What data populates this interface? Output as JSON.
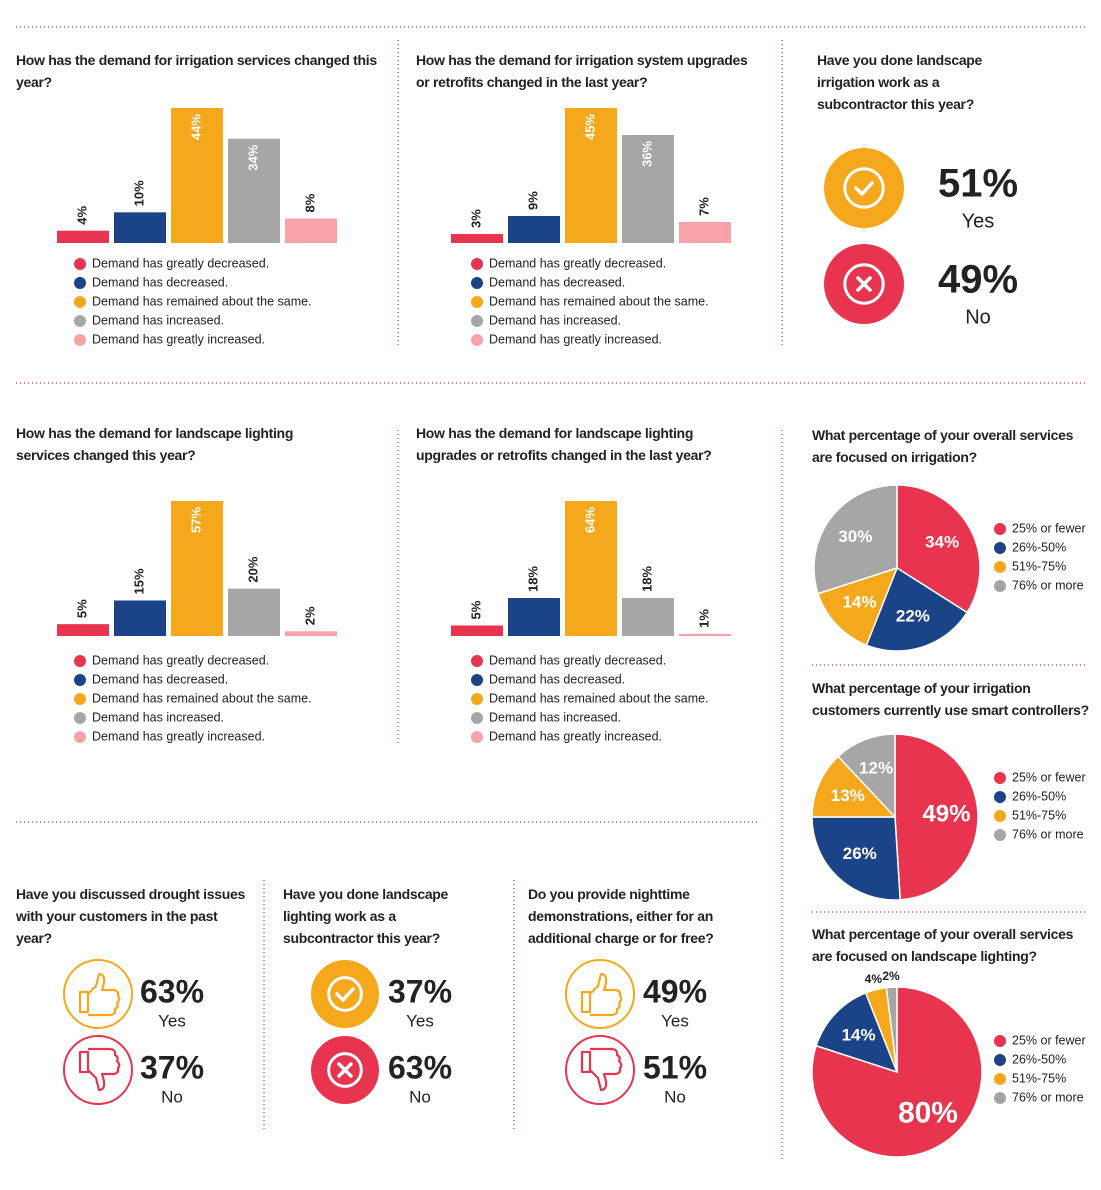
{
  "chart_data": [
    {
      "type": "bar",
      "title": "How has the demand for irrigation services changed this year?",
      "categories": [
        "Demand has greatly decreased.",
        "Demand has decreased.",
        "Demand has remained about the same.",
        "Demand has increased.",
        "Demand has greatly increased."
      ],
      "values": [
        4,
        10,
        44,
        34,
        8
      ],
      "value_labels": [
        "4%",
        "10%",
        "44%",
        "34%",
        "8%"
      ],
      "colors": [
        "#e8344e",
        "#1b4488",
        "#f5a81c",
        "#a6a6a6",
        "#f7a3a8"
      ]
    },
    {
      "type": "bar",
      "title": "How has the demand for irrigation system upgrades or retrofits changed in the last year?",
      "categories": [
        "Demand has greatly decreased.",
        "Demand has decreased.",
        "Demand has remained about the same.",
        "Demand has increased.",
        "Demand has greatly increased."
      ],
      "values": [
        3,
        9,
        45,
        36,
        7
      ],
      "value_labels": [
        "3%",
        "9%",
        "45%",
        "36%",
        "7%"
      ],
      "colors": [
        "#e8344e",
        "#1b4488",
        "#f5a81c",
        "#a6a6a6",
        "#f7a3a8"
      ]
    },
    {
      "type": "stat",
      "title": "Have you done landscape irrigation work as a subcontractor this year?",
      "icon": "check",
      "categories": [
        "Yes",
        "No"
      ],
      "values": [
        51,
        49
      ],
      "value_labels": [
        "51%",
        "49%"
      ],
      "colors": [
        "#f5a81c",
        "#e8344e"
      ]
    },
    {
      "type": "bar",
      "title": "How has the demand for landscape lighting services changed this year?",
      "categories": [
        "Demand has greatly decreased.",
        "Demand has decreased.",
        "Demand has remained about the same.",
        "Demand has increased.",
        "Demand has greatly increased."
      ],
      "values": [
        5,
        15,
        57,
        20,
        2
      ],
      "value_labels": [
        "5%",
        "15%",
        "57%",
        "20%",
        "2%"
      ],
      "colors": [
        "#e8344e",
        "#1b4488",
        "#f5a81c",
        "#a6a6a6",
        "#f7a3a8"
      ]
    },
    {
      "type": "bar",
      "title": "How has the demand for landscape lighting upgrades or retrofits changed in the last year?",
      "categories": [
        "Demand has greatly decreased.",
        "Demand has decreased.",
        "Demand has remained about the same.",
        "Demand has increased.",
        "Demand has greatly increased."
      ],
      "values": [
        5,
        18,
        64,
        18,
        1
      ],
      "value_labels": [
        "5%",
        "18%",
        "64%",
        "18%",
        "1%"
      ],
      "colors": [
        "#e8344e",
        "#1b4488",
        "#f5a81c",
        "#a6a6a6",
        "#f7a3a8"
      ]
    },
    {
      "type": "pie",
      "title": "What percentage of your overall services are focused on irrigation?",
      "categories": [
        "25% or fewer",
        "26%-50%",
        "51%-75%",
        "76% or more"
      ],
      "values": [
        34,
        22,
        14,
        30
      ],
      "value_labels": [
        "34%",
        "22%",
        "14%",
        "30%"
      ],
      "colors": [
        "#e8344e",
        "#1b4488",
        "#f5a81c",
        "#a6a6a6"
      ]
    },
    {
      "type": "pie",
      "title": "What percentage of your irrigation customers currently use smart controllers?",
      "categories": [
        "25% or fewer",
        "26%-50%",
        "51%-75%",
        "76% or more"
      ],
      "values": [
        49,
        26,
        13,
        12
      ],
      "value_labels": [
        "49%",
        "26%",
        "13%",
        "12%"
      ],
      "colors": [
        "#e8344e",
        "#1b4488",
        "#f5a81c",
        "#a6a6a6"
      ]
    },
    {
      "type": "pie",
      "title": "What percentage of your overall services are focused on landscape lighting?",
      "categories": [
        "25% or fewer",
        "26%-50%",
        "51%-75%",
        "76% or more"
      ],
      "values": [
        80,
        14,
        4,
        2
      ],
      "value_labels": [
        "80%",
        "14%",
        "4%",
        "2%"
      ],
      "colors": [
        "#e8344e",
        "#1b4488",
        "#f5a81c",
        "#a6a6a6"
      ]
    },
    {
      "type": "stat",
      "title": "Have you discussed drought issues with your customers in the past year?",
      "icon": "thumb",
      "categories": [
        "Yes",
        "No"
      ],
      "values": [
        63,
        37
      ],
      "value_labels": [
        "63%",
        "37%"
      ],
      "colors": [
        "#f5a81c",
        "#e8344e"
      ]
    },
    {
      "type": "stat",
      "title": "Have you done landscape lighting work as a subcontractor this year?",
      "icon": "check",
      "categories": [
        "Yes",
        "No"
      ],
      "values": [
        37,
        63
      ],
      "value_labels": [
        "37%",
        "63%"
      ],
      "colors": [
        "#f5a81c",
        "#e8344e"
      ]
    },
    {
      "type": "stat",
      "title": "Do you provide nighttime demonstrations, either for an additional charge or for free?",
      "icon": "thumb",
      "categories": [
        "Yes",
        "No"
      ],
      "values": [
        49,
        51
      ],
      "value_labels": [
        "49%",
        "51%"
      ],
      "colors": [
        "#f5a81c",
        "#e8344e"
      ]
    }
  ]
}
